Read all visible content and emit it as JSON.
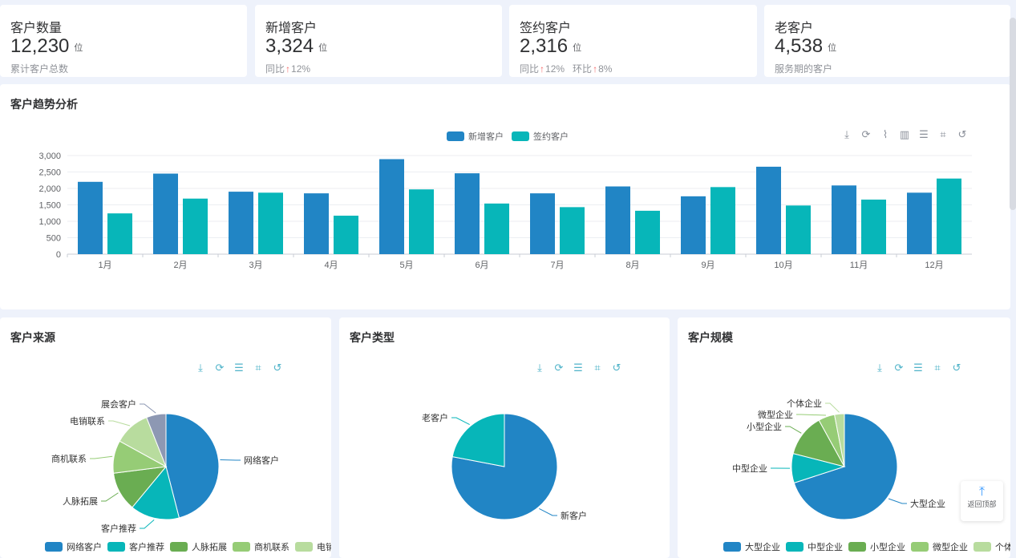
{
  "stats": [
    {
      "title": "客户数量",
      "value": "12,230",
      "unit": "位",
      "sub": "累计客户总数"
    },
    {
      "title": "新增客户",
      "value": "3,324",
      "unit": "位",
      "sub_prefix": "同比",
      "sub_arrow": "↑",
      "sub_value": "12%"
    },
    {
      "title": "签约客户",
      "value": "2,316",
      "unit": "位",
      "sub_prefix": "同比",
      "sub_arrow": "↑",
      "sub_value": "12%",
      "sub2_prefix": "环比",
      "sub2_arrow": "↑",
      "sub2_value": "8%"
    },
    {
      "title": "老客户",
      "value": "4,538",
      "unit": "位",
      "sub": "服务期的客户"
    }
  ],
  "trend": {
    "title": "客户趋势分析"
  },
  "pies": {
    "source": {
      "title": "客户来源"
    },
    "type": {
      "title": "客户类型"
    },
    "scale": {
      "title": "客户规模"
    }
  },
  "toolbar_icons": [
    "download-icon",
    "refresh-icon",
    "line-chart-icon",
    "bar-chart-icon",
    "list-icon",
    "crop-icon",
    "reset-icon"
  ],
  "backtop": {
    "label": "返回顶部"
  },
  "colors": {
    "blue": "#2185c5",
    "teal": "#07b6b9",
    "green": "#6aad52",
    "lightgreen": "#96cc76",
    "palegreen": "#b8dc9e",
    "slate": "#8d98b3"
  },
  "chart_data": [
    {
      "type": "bar",
      "title": "",
      "categories": [
        "1月",
        "2月",
        "3月",
        "4月",
        "5月",
        "6月",
        "7月",
        "8月",
        "9月",
        "10月",
        "11月",
        "12月"
      ],
      "series": [
        {
          "name": "新增客户",
          "color": "#2185c5",
          "values": [
            2200,
            2450,
            1900,
            1850,
            2890,
            2460,
            1850,
            2060,
            1760,
            2660,
            2090,
            1870
          ]
        },
        {
          "name": "签约客户",
          "color": "#07b6b9",
          "values": [
            1240,
            1690,
            1870,
            1170,
            1970,
            1540,
            1430,
            1320,
            2040,
            1480,
            1660,
            2300
          ]
        }
      ],
      "yticks": [
        "0",
        "500",
        "1,000",
        "1,500",
        "2,000",
        "2,500",
        "3,000"
      ],
      "ylim": [
        0,
        3000
      ],
      "legend": "top-center",
      "grid": true
    },
    {
      "type": "pie",
      "title": "客户来源",
      "slices": [
        {
          "label": "网络客户",
          "value": 46,
          "color": "#2185c5"
        },
        {
          "label": "客户推荐",
          "value": 15,
          "color": "#07b6b9"
        },
        {
          "label": "人脉拓展",
          "value": 12,
          "color": "#6aad52"
        },
        {
          "label": "商机联系",
          "value": 10,
          "color": "#96cc76"
        },
        {
          "label": "电销联系",
          "value": 11,
          "color": "#b8dc9e"
        },
        {
          "label": "展会客户",
          "value": 6,
          "color": "#8d98b3"
        }
      ],
      "legend": "bottom"
    },
    {
      "type": "pie",
      "title": "客户类型",
      "slices": [
        {
          "label": "新客户",
          "value": 78,
          "color": "#2185c5"
        },
        {
          "label": "老客户",
          "value": 22,
          "color": "#07b6b9"
        }
      ]
    },
    {
      "type": "pie",
      "title": "客户规模",
      "slices": [
        {
          "label": "大型企业",
          "value": 70,
          "color": "#2185c5"
        },
        {
          "label": "中型企业",
          "value": 9,
          "color": "#07b6b9"
        },
        {
          "label": "小型企业",
          "value": 13,
          "color": "#6aad52"
        },
        {
          "label": "微型企业",
          "value": 5,
          "color": "#96cc76"
        },
        {
          "label": "个体企业",
          "value": 3,
          "color": "#b8dc9e"
        }
      ],
      "legend": "bottom"
    }
  ]
}
